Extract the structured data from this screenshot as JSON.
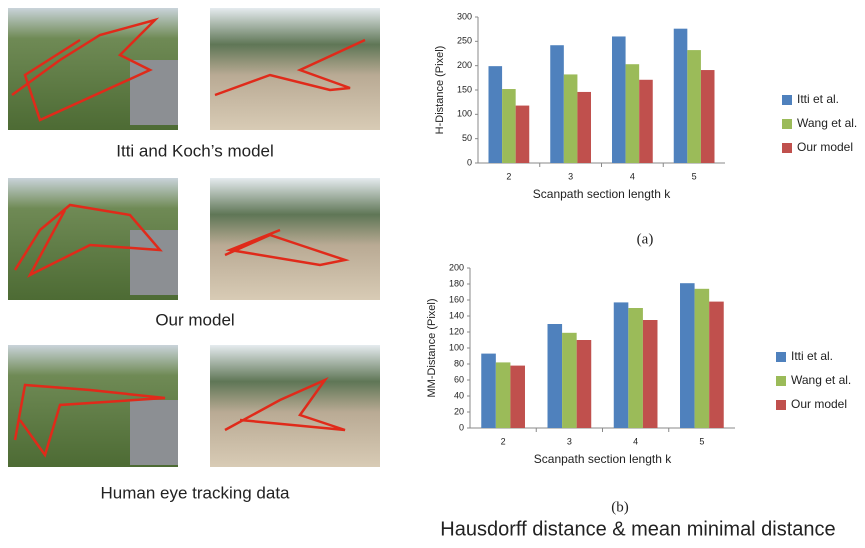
{
  "captions": [
    "Itti and Koch’s model",
    "Our model",
    "Human eye tracking data"
  ],
  "footer": "Hausdorff distance & mean minimal distance",
  "chart_data": [
    {
      "type": "bar",
      "caption": "(a)",
      "x_label": "Scanpath section length k",
      "y_label": "H-Distance (Pixel)",
      "categories": [
        "2",
        "3",
        "4",
        "5"
      ],
      "series": [
        {
          "name": "Itti et al.",
          "color": "#4f81bd",
          "values": [
            199,
            242,
            260,
            276
          ]
        },
        {
          "name": "Wang et al.",
          "color": "#9bbb59",
          "values": [
            152,
            182,
            203,
            232
          ]
        },
        {
          "name": "Our model",
          "color": "#c0504d",
          "values": [
            118,
            146,
            171,
            191
          ]
        }
      ],
      "ylim": [
        0,
        300
      ],
      "yticks": [
        0,
        50,
        100,
        150,
        200,
        250,
        300
      ],
      "legend": "right"
    },
    {
      "type": "bar",
      "caption": "(b)",
      "x_label": "Scanpath section length k",
      "y_label": "MM-Distance (Pixel)",
      "categories": [
        "2",
        "3",
        "4",
        "5"
      ],
      "series": [
        {
          "name": "Itti et al.",
          "color": "#4f81bd",
          "values": [
            93,
            130,
            157,
            181
          ]
        },
        {
          "name": "Wang et al.",
          "color": "#9bbb59",
          "values": [
            82,
            119,
            150,
            174
          ]
        },
        {
          "name": "Our model",
          "color": "#c0504d",
          "values": [
            78,
            110,
            135,
            158
          ]
        }
      ],
      "ylim": [
        0,
        200
      ],
      "yticks": [
        0,
        20,
        40,
        60,
        80,
        100,
        120,
        140,
        160,
        180,
        200
      ],
      "legend": "right"
    }
  ]
}
